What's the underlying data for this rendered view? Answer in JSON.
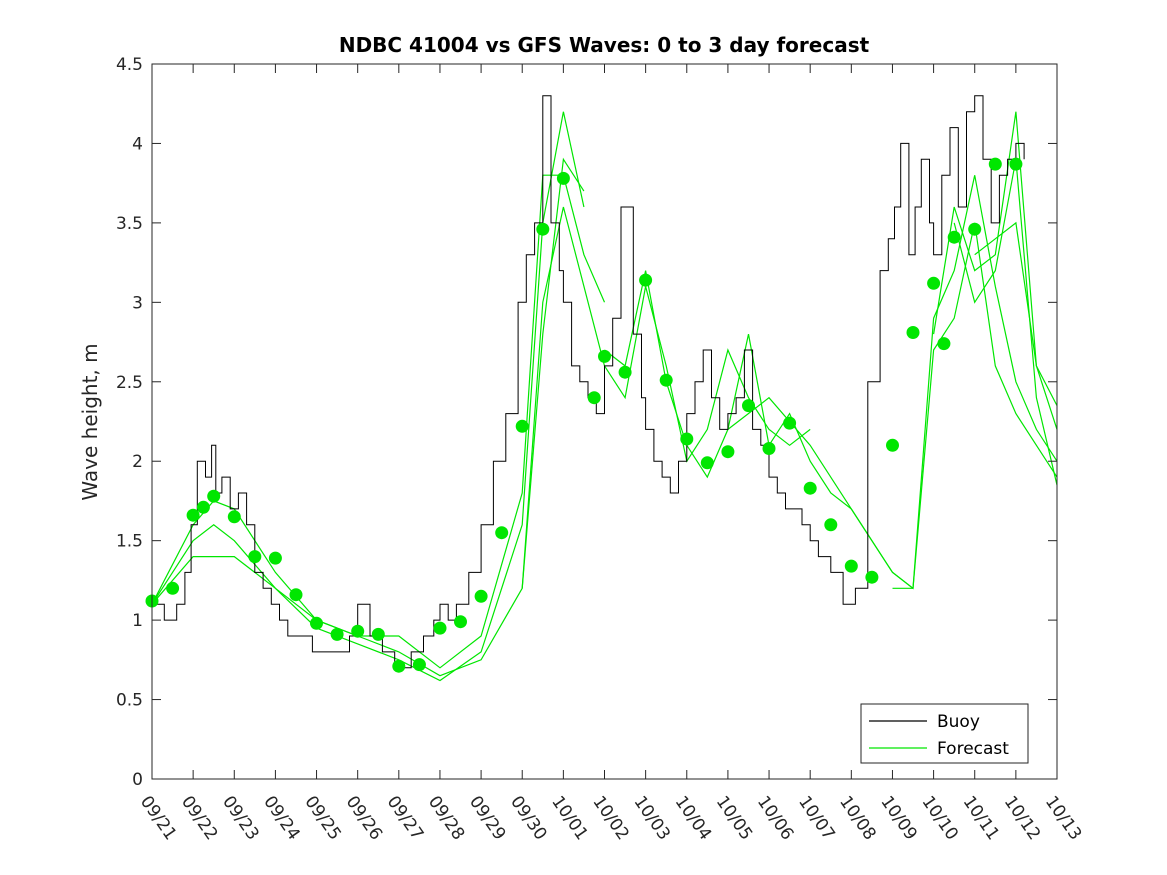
{
  "chart_data": {
    "type": "line",
    "title": "NDBC 41004 vs GFS Waves: 0 to 3 day forecast",
    "xlabel": "",
    "ylabel": "Wave height, m",
    "xlim": [
      0,
      22
    ],
    "ylim": [
      0,
      4.5
    ],
    "x_tick_labels": [
      "09/21",
      "09/22",
      "09/23",
      "09/24",
      "09/25",
      "09/26",
      "09/27",
      "09/28",
      "09/29",
      "09/30",
      "10/01",
      "10/02",
      "10/03",
      "10/04",
      "10/05",
      "10/06",
      "10/07",
      "10/08",
      "10/09",
      "10/10",
      "10/11",
      "10/12",
      "10/13"
    ],
    "y_ticks": [
      0,
      0.5,
      1,
      1.5,
      2,
      2.5,
      3,
      3.5,
      4,
      4.5
    ],
    "y_tick_labels": [
      "0",
      "0.5",
      "1",
      "1.5",
      "2",
      "2.5",
      "3",
      "3.5",
      "4",
      "4.5"
    ],
    "legend": {
      "position": "bottom-right",
      "entries": [
        {
          "label": "Buoy",
          "color": "#000000"
        },
        {
          "label": "Forecast",
          "color": "#00e600"
        }
      ]
    },
    "colors": {
      "buoy": "#000000",
      "forecast": "#00e600",
      "markers": "#00e600"
    },
    "buoy": {
      "x": [
        0,
        0.3,
        0.6,
        0.8,
        0.95,
        1.1,
        1.3,
        1.45,
        1.55,
        1.7,
        1.9,
        2.1,
        2.3,
        2.5,
        2.7,
        2.9,
        3.1,
        3.3,
        3.6,
        3.9,
        4.2,
        4.5,
        4.8,
        5.0,
        5.3,
        5.6,
        5.9,
        6.1,
        6.3,
        6.6,
        6.85,
        7.0,
        7.2,
        7.4,
        7.7,
        8.0,
        8.3,
        8.6,
        8.9,
        9.1,
        9.3,
        9.5,
        9.7,
        9.9,
        10.0,
        10.2,
        10.4,
        10.6,
        10.8,
        11.0,
        11.2,
        11.4,
        11.7,
        11.9,
        12.0,
        12.2,
        12.4,
        12.6,
        12.8,
        13.0,
        13.2,
        13.4,
        13.6,
        13.8,
        14.0,
        14.2,
        14.4,
        14.6,
        14.8,
        15.0,
        15.2,
        15.4,
        15.6,
        15.8,
        16.0,
        16.2,
        16.5,
        16.8,
        17.1,
        17.4,
        17.7,
        17.9,
        18.05,
        18.2,
        18.4,
        18.55,
        18.7,
        18.9,
        19.0,
        19.2,
        19.4,
        19.6,
        19.8,
        20.0,
        20.2,
        20.4,
        20.6,
        20.8,
        21.0,
        21.2
      ],
      "values": [
        1.1,
        1.0,
        1.1,
        1.3,
        1.6,
        2.0,
        1.9,
        2.1,
        1.8,
        1.9,
        1.7,
        1.8,
        1.6,
        1.3,
        1.2,
        1.1,
        1.0,
        0.9,
        0.9,
        0.8,
        0.8,
        0.8,
        0.9,
        1.1,
        0.9,
        0.8,
        0.7,
        0.7,
        0.8,
        0.9,
        1.0,
        1.1,
        1.0,
        1.1,
        1.3,
        1.6,
        2.0,
        2.3,
        3.0,
        3.3,
        3.5,
        4.3,
        3.5,
        3.2,
        3.0,
        2.6,
        2.5,
        2.4,
        2.3,
        2.6,
        2.9,
        3.6,
        2.8,
        2.4,
        2.2,
        2.0,
        1.9,
        1.8,
        2.0,
        2.3,
        2.5,
        2.7,
        2.4,
        2.2,
        2.3,
        2.4,
        2.7,
        2.2,
        2.1,
        1.9,
        1.8,
        1.7,
        1.7,
        1.6,
        1.5,
        1.4,
        1.3,
        1.1,
        1.2,
        2.5,
        3.2,
        3.4,
        3.6,
        4.0,
        3.3,
        3.6,
        3.9,
        3.5,
        3.3,
        3.8,
        4.1,
        3.6,
        4.2,
        4.3,
        3.9,
        3.5,
        3.8,
        3.9,
        4.0,
        3.9
      ]
    },
    "forecast_series": [
      {
        "name": "Forecast 1",
        "x": [
          0,
          1,
          1.5,
          2,
          3,
          4,
          5,
          6,
          7,
          8,
          9,
          9.5,
          10,
          10.5
        ],
        "values": [
          1.1,
          1.6,
          1.75,
          1.7,
          1.3,
          1.0,
          0.9,
          0.8,
          0.65,
          0.75,
          1.2,
          2.8,
          3.9,
          3.7
        ]
      },
      {
        "name": "Forecast 2",
        "x": [
          0,
          1,
          1.5,
          2,
          3,
          4,
          5,
          6,
          7,
          8,
          9,
          9.5,
          10,
          10.5
        ],
        "values": [
          1.1,
          1.5,
          1.6,
          1.5,
          1.2,
          0.95,
          0.85,
          0.75,
          0.62,
          0.8,
          1.6,
          3.5,
          4.2,
          3.6
        ]
      },
      {
        "name": "Forecast 3",
        "x": [
          0,
          1,
          2,
          3,
          4,
          5,
          6,
          7,
          8,
          9,
          9.5,
          10,
          10.5,
          11
        ],
        "values": [
          1.1,
          1.4,
          1.4,
          1.2,
          1.0,
          0.9,
          0.9,
          0.7,
          0.9,
          1.8,
          3.8,
          3.8,
          3.3,
          3.0
        ]
      },
      {
        "name": "Forecast 4",
        "x": [
          9,
          9.5,
          10,
          11,
          11.5,
          12,
          12.5,
          13,
          13.5,
          14,
          14.5,
          15,
          15.5,
          16
        ],
        "values": [
          1.2,
          3.0,
          3.6,
          2.6,
          2.4,
          3.1,
          2.6,
          2.0,
          2.2,
          2.7,
          2.4,
          2.2,
          2.1,
          2.2
        ]
      },
      {
        "name": "Forecast 5",
        "x": [
          11,
          11.5,
          12,
          12.5,
          13,
          13.5,
          14,
          14.5,
          15,
          15.5,
          16,
          16.5,
          17,
          17.5,
          18,
          18.5
        ],
        "values": [
          2.7,
          2.6,
          3.2,
          2.5,
          2.1,
          1.9,
          2.2,
          2.8,
          2.1,
          2.3,
          2.0,
          1.8,
          1.7,
          1.5,
          1.3,
          1.2
        ]
      },
      {
        "name": "Forecast 6",
        "x": [
          14,
          15,
          16,
          17,
          18,
          18.5,
          19,
          19.5,
          20,
          20.5,
          21,
          21.5,
          22
        ],
        "values": [
          2.2,
          2.4,
          2.1,
          1.7,
          1.3,
          1.2,
          2.9,
          3.2,
          3.8,
          3.1,
          2.5,
          2.2,
          2.0
        ]
      },
      {
        "name": "Forecast 7",
        "x": [
          18,
          18.5,
          19,
          19.5,
          20,
          20.5,
          21,
          21.5,
          22
        ],
        "values": [
          1.2,
          1.2,
          2.7,
          2.9,
          3.5,
          2.6,
          2.3,
          2.1,
          1.9
        ]
      },
      {
        "name": "Forecast 8",
        "x": [
          19,
          19.5,
          20,
          20.5,
          21,
          21.5,
          22
        ],
        "values": [
          2.8,
          3.6,
          3.2,
          3.3,
          4.2,
          2.6,
          2.2
        ]
      },
      {
        "name": "Forecast 9",
        "x": [
          19.5,
          20,
          20.5,
          21,
          21.5,
          22
        ],
        "values": [
          3.5,
          3.0,
          3.2,
          3.9,
          2.4,
          1.85
        ]
      },
      {
        "name": "Forecast 10",
        "x": [
          20,
          20.5,
          21,
          21.5,
          22
        ],
        "values": [
          3.3,
          3.4,
          3.5,
          2.6,
          2.35
        ]
      }
    ],
    "markers": {
      "x": [
        0,
        0.5,
        1,
        1.25,
        1.5,
        2,
        2.5,
        3,
        3.5,
        4,
        4.5,
        5,
        5.5,
        6,
        6.5,
        7,
        7.5,
        8,
        8.5,
        9,
        9.5,
        10,
        10.75,
        11,
        11.5,
        12,
        12.5,
        13,
        13.5,
        14,
        14.5,
        15,
        15.5,
        16,
        16.5,
        17,
        17.5,
        18,
        18.5,
        19,
        19.25,
        19.5,
        20,
        20.5,
        21
      ],
      "values": [
        1.12,
        1.2,
        1.66,
        1.71,
        1.78,
        1.65,
        1.4,
        1.39,
        1.16,
        0.98,
        0.91,
        0.93,
        0.91,
        0.71,
        0.72,
        0.95,
        0.99,
        1.15,
        1.55,
        2.22,
        3.46,
        3.78,
        2.4,
        2.66,
        2.56,
        3.14,
        2.51,
        2.14,
        1.99,
        2.06,
        2.35,
        2.08,
        2.24,
        1.83,
        1.6,
        1.34,
        1.27,
        2.1,
        2.81,
        3.12,
        2.74,
        3.41,
        3.46,
        3.87,
        3.87
      ]
    }
  }
}
